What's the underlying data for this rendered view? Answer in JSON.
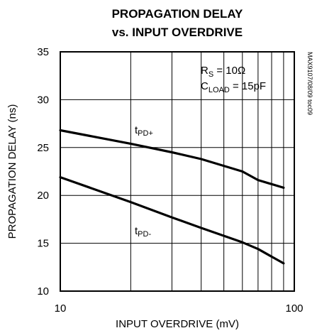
{
  "chart_data": {
    "type": "line",
    "title_line1": "PROPAGATION DELAY",
    "title_line2": "vs. INPUT OVERDRIVE",
    "xlabel": "INPUT OVERDRIVE (mV)",
    "ylabel": "PROPAGATION DELAY (ns)",
    "x_scale": "log",
    "xlim": [
      10,
      100
    ],
    "ylim": [
      10,
      35
    ],
    "x_tick_labels": [
      "10",
      "100"
    ],
    "y_tick_labels": [
      "35",
      "30",
      "25",
      "20",
      "15",
      "10"
    ],
    "grid": true,
    "annotations": {
      "rs_base": "R",
      "rs_sub": "S",
      "rs_rest": " = 10Ω",
      "cload_base": "C",
      "cload_sub": "LOAD",
      "cload_rest": " = 15pF"
    },
    "side_label": "MAX9107/08/09 toc09",
    "series": [
      {
        "label_base": "t",
        "label_sub": "PD+",
        "x": [
          10,
          20,
          30,
          40,
          60,
          70,
          90
        ],
        "y": [
          26.8,
          25.4,
          24.5,
          23.8,
          22.5,
          21.6,
          20.8
        ]
      },
      {
        "label_base": "t",
        "label_sub": "PD-",
        "x": [
          10,
          20,
          30,
          40,
          60,
          70,
          90
        ],
        "y": [
          21.9,
          19.3,
          17.7,
          16.6,
          15.1,
          14.4,
          12.9
        ]
      }
    ]
  }
}
